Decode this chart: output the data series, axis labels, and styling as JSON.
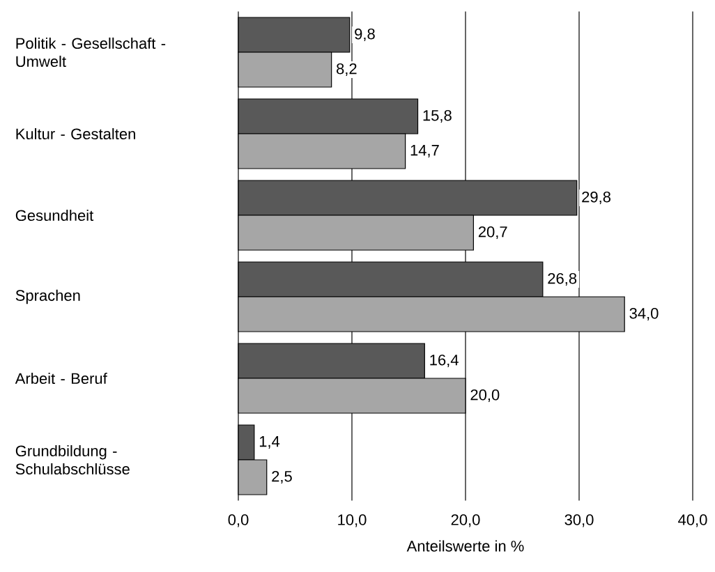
{
  "chart_data": {
    "type": "bar",
    "orientation": "horizontal",
    "xlabel": "Anteilswerte in %",
    "categories": [
      "Politik - Gesellschaft - Umwelt",
      "Kultur - Gestalten",
      "Gesundheit",
      "Sprachen",
      "Arbeit - Beruf",
      "Grundbildung - Schulabschlüsse"
    ],
    "series": [
      {
        "color": "#595959",
        "values": [
          9.8,
          15.8,
          29.8,
          26.8,
          16.4,
          1.4
        ],
        "value_labels": [
          "9,8",
          "15,8",
          "29,8",
          "26,8",
          "16,4",
          "1,4"
        ]
      },
      {
        "color": "#a6a6a6",
        "values": [
          8.2,
          14.7,
          20.7,
          34.0,
          20.0,
          2.5
        ],
        "value_labels": [
          "8,2",
          "14,7",
          "20,7",
          "34,0",
          "20,0",
          "2,5"
        ]
      }
    ],
    "xlim": [
      0,
      40
    ],
    "xticks": [
      {
        "value": 0,
        "label": "0,0"
      },
      {
        "value": 10,
        "label": "10,0"
      },
      {
        "value": 20,
        "label": "20,0"
      },
      {
        "value": 30,
        "label": "30,0"
      },
      {
        "value": 40,
        "label": "40,0"
      }
    ],
    "grid": "x"
  }
}
